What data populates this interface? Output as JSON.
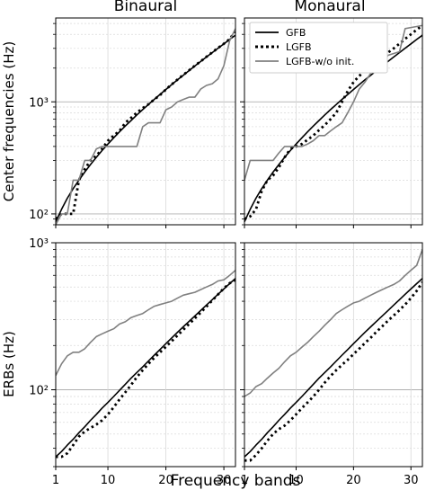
{
  "figure": {
    "xlabel": "Frequency bands",
    "legend": [
      {
        "label": "GFB",
        "style": "solid",
        "color": "#000000"
      },
      {
        "label": "LGFB",
        "style": "dotted",
        "color": "#000000"
      },
      {
        "label": "LGFB-w/o init.",
        "style": "solid",
        "color": "#808080"
      }
    ]
  },
  "chart_data": [
    {
      "type": "line",
      "title": "Binaural",
      "ylabel": "Center frequencies (Hz)",
      "xscale": "linear",
      "yscale": "log",
      "xlim": [
        1,
        32
      ],
      "ylim": [
        80,
        5600
      ],
      "xticks": [
        1,
        10,
        20,
        30
      ],
      "yticks": [
        100,
        1000
      ],
      "ytick_labels": [
        "10²",
        "10³"
      ],
      "grid": true,
      "legend": false,
      "x": [
        1,
        2,
        3,
        4,
        5,
        6,
        7,
        8,
        9,
        10,
        11,
        12,
        13,
        14,
        15,
        16,
        17,
        18,
        19,
        20,
        21,
        22,
        23,
        24,
        25,
        26,
        27,
        28,
        29,
        30,
        31,
        32
      ],
      "series": [
        {
          "name": "GFB",
          "values": [
            85,
            110,
            138,
            168,
            200,
            236,
            276,
            320,
            368,
            420,
            477,
            540,
            608,
            682,
            764,
            852,
            948,
            1052,
            1166,
            1290,
            1424,
            1570,
            1728,
            1900,
            2087,
            2290,
            2510,
            2750,
            3010,
            3290,
            3600,
            3930
          ]
        },
        {
          "name": "LGFB",
          "values": [
            90,
            100,
            100,
            100,
            200,
            250,
            300,
            330,
            380,
            450,
            500,
            550,
            650,
            720,
            800,
            880,
            950,
            1050,
            1150,
            1290,
            1430,
            1580,
            1740,
            1910,
            2100,
            2300,
            2520,
            2760,
            3020,
            3300,
            3620,
            4300
          ]
        },
        {
          "name": "LGFB-w/o init.",
          "values": [
            80,
            100,
            100,
            200,
            200,
            300,
            300,
            380,
            400,
            400,
            400,
            400,
            400,
            400,
            400,
            600,
            650,
            650,
            650,
            850,
            900,
            1000,
            1050,
            1100,
            1100,
            1300,
            1400,
            1450,
            1600,
            2100,
            3500,
            4500
          ]
        }
      ]
    },
    {
      "type": "line",
      "title": "Monaural",
      "ylabel": "",
      "xscale": "linear",
      "yscale": "log",
      "xlim": [
        1,
        32
      ],
      "ylim": [
        80,
        5600
      ],
      "xticks": [
        1,
        10,
        20,
        30
      ],
      "yticks": [
        100,
        1000
      ],
      "ytick_labels": [
        "",
        ""
      ],
      "grid": true,
      "legend": true,
      "legend_position": "top-right",
      "x": [
        1,
        2,
        3,
        4,
        5,
        6,
        7,
        8,
        9,
        10,
        11,
        12,
        13,
        14,
        15,
        16,
        17,
        18,
        19,
        20,
        21,
        22,
        23,
        24,
        25,
        26,
        27,
        28,
        29,
        30,
        31,
        32
      ],
      "series": [
        {
          "name": "GFB",
          "values": [
            85,
            110,
            138,
            168,
            200,
            236,
            276,
            320,
            368,
            420,
            477,
            540,
            608,
            682,
            764,
            852,
            948,
            1052,
            1166,
            1290,
            1424,
            1570,
            1728,
            1900,
            2087,
            2290,
            2510,
            2750,
            3010,
            3290,
            3600,
            3930
          ]
        },
        {
          "name": "LGFB",
          "values": [
            90,
            95,
            110,
            160,
            200,
            220,
            260,
            320,
            380,
            400,
            420,
            460,
            500,
            560,
            620,
            700,
            800,
            1000,
            1250,
            1500,
            1700,
            1900,
            2100,
            2300,
            2500,
            2750,
            3000,
            3300,
            3650,
            4000,
            4400,
            4800
          ]
        },
        {
          "name": "LGFB-w/o init.",
          "values": [
            200,
            300,
            300,
            300,
            300,
            300,
            350,
            400,
            400,
            400,
            400,
            420,
            450,
            500,
            500,
            550,
            600,
            650,
            800,
            1000,
            1300,
            1500,
            1800,
            2000,
            2100,
            2600,
            2700,
            2800,
            4500,
            4600,
            4700,
            4800
          ]
        }
      ]
    },
    {
      "type": "line",
      "title": "",
      "ylabel": "ERBs (Hz)",
      "xscale": "linear",
      "yscale": "log",
      "xlim": [
        1,
        32
      ],
      "ylim": [
        30,
        1000
      ],
      "xticks": [
        1,
        10,
        20,
        30
      ],
      "yticks": [
        100,
        1000
      ],
      "ytick_labels": [
        "10²",
        "10³"
      ],
      "grid": true,
      "legend": false,
      "x": [
        1,
        2,
        3,
        4,
        5,
        6,
        7,
        8,
        9,
        10,
        11,
        12,
        13,
        14,
        15,
        16,
        17,
        18,
        19,
        20,
        21,
        22,
        23,
        24,
        25,
        26,
        27,
        28,
        29,
        30,
        31,
        32
      ],
      "series": [
        {
          "name": "GFB",
          "values": [
            35,
            38,
            42,
            46,
            51,
            56,
            62,
            68,
            75,
            82,
            90,
            99,
            109,
            120,
            131,
            143,
            157,
            172,
            188,
            206,
            225,
            246,
            268,
            292,
            318,
            346,
            377,
            410,
            446,
            485,
            527,
            572
          ]
        },
        {
          "name": "LGFB",
          "values": [
            35,
            35,
            37,
            42,
            48,
            52,
            55,
            58,
            62,
            68,
            76,
            86,
            96,
            108,
            122,
            136,
            150,
            165,
            180,
            196,
            214,
            234,
            256,
            280,
            306,
            335,
            368,
            405,
            445,
            490,
            530,
            560
          ]
        },
        {
          "name": "LGFB-w/o init.",
          "values": [
            125,
            150,
            170,
            180,
            180,
            190,
            210,
            230,
            240,
            250,
            260,
            280,
            290,
            310,
            320,
            330,
            350,
            370,
            380,
            390,
            400,
            420,
            440,
            450,
            460,
            480,
            500,
            520,
            550,
            560,
            600,
            650
          ]
        }
      ]
    },
    {
      "type": "line",
      "title": "",
      "ylabel": "",
      "xscale": "linear",
      "yscale": "log",
      "xlim": [
        1,
        32
      ],
      "ylim": [
        30,
        1000
      ],
      "xticks": [
        1,
        10,
        20,
        30
      ],
      "yticks": [
        100,
        1000
      ],
      "ytick_labels": [
        "",
        ""
      ],
      "grid": true,
      "legend": false,
      "x": [
        1,
        2,
        3,
        4,
        5,
        6,
        7,
        8,
        9,
        10,
        11,
        12,
        13,
        14,
        15,
        16,
        17,
        18,
        19,
        20,
        21,
        22,
        23,
        24,
        25,
        26,
        27,
        28,
        29,
        30,
        31,
        32
      ],
      "series": [
        {
          "name": "GFB",
          "values": [
            35,
            38,
            42,
            46,
            51,
            56,
            62,
            68,
            75,
            82,
            90,
            99,
            109,
            120,
            131,
            143,
            157,
            172,
            188,
            206,
            225,
            246,
            268,
            292,
            318,
            346,
            377,
            410,
            446,
            485,
            527,
            572
          ]
        },
        {
          "name": "LGFB",
          "values": [
            33,
            33,
            36,
            40,
            45,
            50,
            54,
            57,
            62,
            68,
            75,
            82,
            90,
            100,
            112,
            124,
            136,
            148,
            160,
            175,
            190,
            208,
            226,
            248,
            270,
            295,
            320,
            348,
            380,
            420,
            470,
            540
          ]
        },
        {
          "name": "LGFB-w/o init.",
          "values": [
            90,
            95,
            105,
            110,
            120,
            130,
            140,
            155,
            170,
            180,
            195,
            210,
            230,
            250,
            275,
            300,
            330,
            350,
            370,
            390,
            400,
            420,
            440,
            460,
            480,
            500,
            520,
            550,
            600,
            650,
            700,
            900
          ]
        }
      ]
    }
  ]
}
